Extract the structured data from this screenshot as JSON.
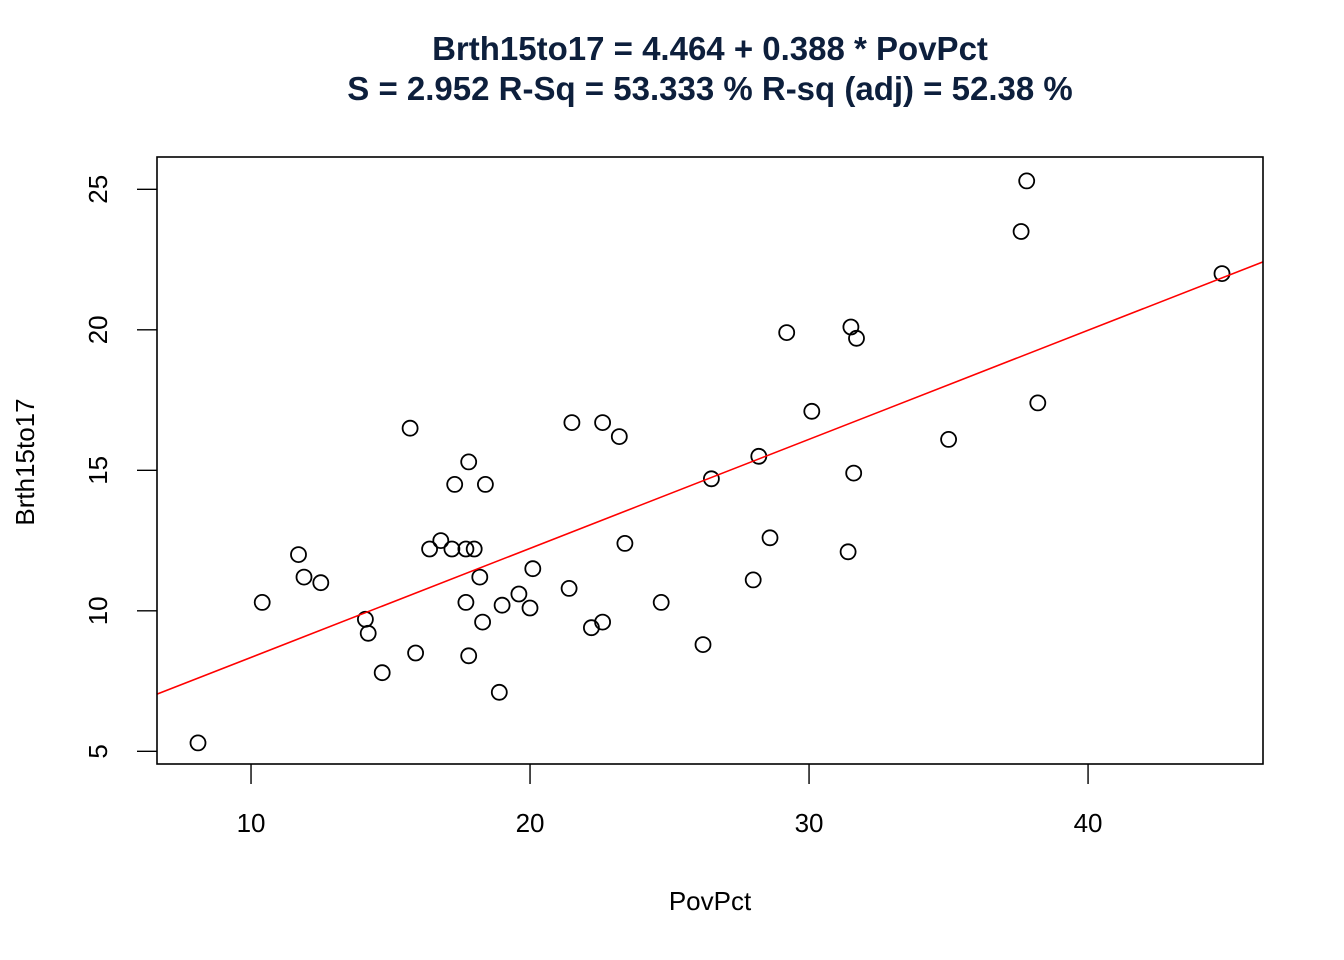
{
  "chart_data": {
    "type": "scatter",
    "title": "Brth15to17 = 4.464 + 0.388 * PovPct",
    "subtitle": "S = 2.952   R-Sq = 53.333 %  R-sq (adj) = 52.38 %",
    "xlabel": "PovPct",
    "ylabel": "Brth15to17",
    "xlim": [
      6.63,
      46.27
    ],
    "ylim": [
      4.55,
      26.15
    ],
    "x_ticks": [
      10,
      20,
      30,
      40
    ],
    "y_ticks": [
      5,
      10,
      15,
      20,
      25
    ],
    "grid": false,
    "legend": null,
    "regression": {
      "intercept": 4.464,
      "slope": 0.388,
      "color": "#ff0000",
      "S": 2.952,
      "r_sq_pct": 53.333,
      "r_sq_adj_pct": 52.38
    },
    "point_style": {
      "marker": "open-circle",
      "color": "#000000"
    },
    "title_color": "#0d1f3c",
    "series": [
      {
        "name": "observations",
        "points": [
          {
            "x": 8.1,
            "y": 5.3
          },
          {
            "x": 10.4,
            "y": 10.3
          },
          {
            "x": 11.7,
            "y": 12.0
          },
          {
            "x": 11.9,
            "y": 11.2
          },
          {
            "x": 12.5,
            "y": 11.0
          },
          {
            "x": 14.1,
            "y": 9.7
          },
          {
            "x": 14.2,
            "y": 9.2
          },
          {
            "x": 14.7,
            "y": 7.8
          },
          {
            "x": 15.9,
            "y": 8.5
          },
          {
            "x": 15.7,
            "y": 16.5
          },
          {
            "x": 17.8,
            "y": 15.3
          },
          {
            "x": 17.3,
            "y": 14.5
          },
          {
            "x": 18.4,
            "y": 14.5
          },
          {
            "x": 16.8,
            "y": 12.5
          },
          {
            "x": 16.4,
            "y": 12.2
          },
          {
            "x": 17.2,
            "y": 12.2
          },
          {
            "x": 17.7,
            "y": 12.2
          },
          {
            "x": 18.0,
            "y": 12.2
          },
          {
            "x": 18.2,
            "y": 11.2
          },
          {
            "x": 20.1,
            "y": 11.5
          },
          {
            "x": 19.6,
            "y": 10.6
          },
          {
            "x": 19.0,
            "y": 10.2
          },
          {
            "x": 17.7,
            "y": 10.3
          },
          {
            "x": 20.0,
            "y": 10.1
          },
          {
            "x": 18.3,
            "y": 9.6
          },
          {
            "x": 17.8,
            "y": 8.4
          },
          {
            "x": 18.9,
            "y": 7.1
          },
          {
            "x": 21.5,
            "y": 16.7
          },
          {
            "x": 22.6,
            "y": 16.7
          },
          {
            "x": 23.2,
            "y": 16.2
          },
          {
            "x": 26.5,
            "y": 14.7
          },
          {
            "x": 23.4,
            "y": 12.4
          },
          {
            "x": 21.4,
            "y": 10.8
          },
          {
            "x": 24.7,
            "y": 10.3
          },
          {
            "x": 22.6,
            "y": 9.6
          },
          {
            "x": 22.2,
            "y": 9.4
          },
          {
            "x": 26.2,
            "y": 8.8
          },
          {
            "x": 29.2,
            "y": 19.9
          },
          {
            "x": 31.5,
            "y": 20.1
          },
          {
            "x": 31.7,
            "y": 19.7
          },
          {
            "x": 30.1,
            "y": 17.1
          },
          {
            "x": 28.2,
            "y": 15.5
          },
          {
            "x": 35.0,
            "y": 16.1
          },
          {
            "x": 31.6,
            "y": 14.9
          },
          {
            "x": 28.6,
            "y": 12.6
          },
          {
            "x": 31.4,
            "y": 12.1
          },
          {
            "x": 28.0,
            "y": 11.1
          },
          {
            "x": 37.8,
            "y": 25.3
          },
          {
            "x": 37.6,
            "y": 23.5
          },
          {
            "x": 44.8,
            "y": 22.0
          },
          {
            "x": 38.2,
            "y": 17.4
          }
        ]
      }
    ]
  }
}
